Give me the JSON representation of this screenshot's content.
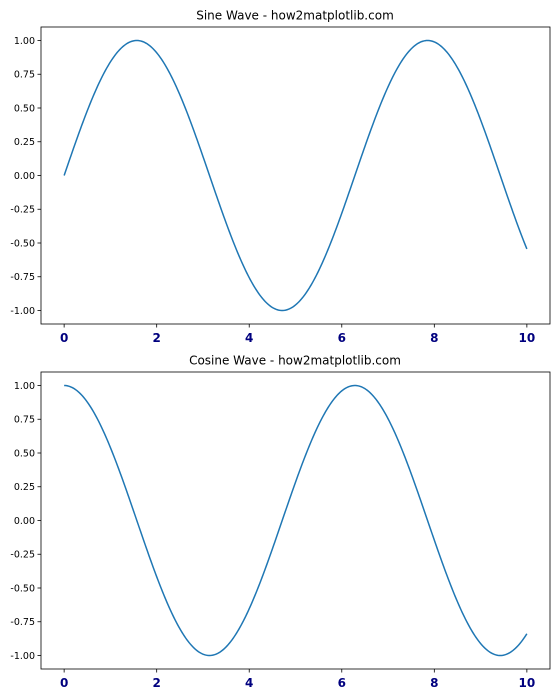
{
  "chart_data": [
    {
      "type": "line",
      "title": "Sine Wave - how2matplotlib.com",
      "function": "sin",
      "x": [
        0,
        0.25,
        0.5,
        0.75,
        1,
        1.25,
        1.5,
        1.75,
        2,
        2.25,
        2.5,
        2.75,
        3,
        3.25,
        3.5,
        3.75,
        4,
        4.25,
        4.5,
        4.75,
        5,
        5.25,
        5.5,
        5.75,
        6,
        6.25,
        6.5,
        6.75,
        7,
        7.25,
        7.5,
        7.75,
        8,
        8.25,
        8.5,
        8.75,
        9,
        9.25,
        9.5,
        9.75,
        10
      ],
      "y": [
        0,
        0.247,
        0.479,
        0.682,
        0.841,
        0.949,
        0.997,
        0.984,
        0.909,
        0.778,
        0.598,
        0.382,
        0.141,
        -0.108,
        -0.351,
        -0.572,
        -0.757,
        -0.895,
        -0.978,
        -0.999,
        -0.959,
        -0.859,
        -0.706,
        -0.508,
        -0.279,
        -0.033,
        0.215,
        0.451,
        0.657,
        0.823,
        0.938,
        0.995,
        0.989,
        0.923,
        0.798,
        0.624,
        0.412,
        0.174,
        -0.075,
        -0.32,
        -0.544
      ],
      "xlim": [
        -0.5,
        10.5
      ],
      "ylim": [
        -1.1,
        1.1
      ],
      "xticks": [
        "0",
        "2",
        "4",
        "6",
        "8",
        "10"
      ],
      "xtick_values": [
        0,
        2,
        4,
        6,
        8,
        10
      ],
      "yticks": [
        "1.00",
        "0.75",
        "0.50",
        "0.25",
        "0.00",
        "-0.25",
        "-0.50",
        "-0.75",
        "-1.00"
      ],
      "ytick_values": [
        1,
        0.75,
        0.5,
        0.25,
        0,
        -0.25,
        -0.5,
        -0.75,
        -1
      ],
      "grid": false
    },
    {
      "type": "line",
      "title": "Cosine Wave - how2matplotlib.com",
      "function": "cos",
      "x": [
        0,
        0.25,
        0.5,
        0.75,
        1,
        1.25,
        1.5,
        1.75,
        2,
        2.25,
        2.5,
        2.75,
        3,
        3.25,
        3.5,
        3.75,
        4,
        4.25,
        4.5,
        4.75,
        5,
        5.25,
        5.5,
        5.75,
        6,
        6.25,
        6.5,
        6.75,
        7,
        7.25,
        7.5,
        7.75,
        8,
        8.25,
        8.5,
        8.75,
        9,
        9.25,
        9.5,
        9.75,
        10
      ],
      "y": [
        1,
        0.969,
        0.878,
        0.732,
        0.54,
        0.315,
        0.071,
        -0.178,
        -0.416,
        -0.628,
        -0.801,
        -0.924,
        -0.99,
        -0.994,
        -0.936,
        -0.82,
        -0.654,
        -0.446,
        -0.211,
        0.037,
        0.284,
        0.512,
        0.709,
        0.861,
        0.96,
        0.999,
        0.977,
        0.893,
        0.754,
        0.568,
        0.347,
        0.104,
        -0.146,
        -0.386,
        -0.602,
        -0.781,
        -0.911,
        -0.985,
        -0.997,
        -0.947,
        -0.839
      ],
      "xlim": [
        -0.5,
        10.5
      ],
      "ylim": [
        -1.1,
        1.1
      ],
      "xticks": [
        "0",
        "2",
        "4",
        "6",
        "8",
        "10"
      ],
      "xtick_values": [
        0,
        2,
        4,
        6,
        8,
        10
      ],
      "yticks": [
        "1.00",
        "0.75",
        "0.50",
        "0.25",
        "0.00",
        "-0.25",
        "-0.50",
        "-0.75",
        "-1.00"
      ],
      "ytick_values": [
        1,
        0.75,
        0.5,
        0.25,
        0,
        -0.25,
        -0.5,
        -0.75,
        -1
      ],
      "grid": false
    }
  ],
  "colors": {
    "line": "#1f77b4",
    "xtick_label": "#00007f"
  }
}
